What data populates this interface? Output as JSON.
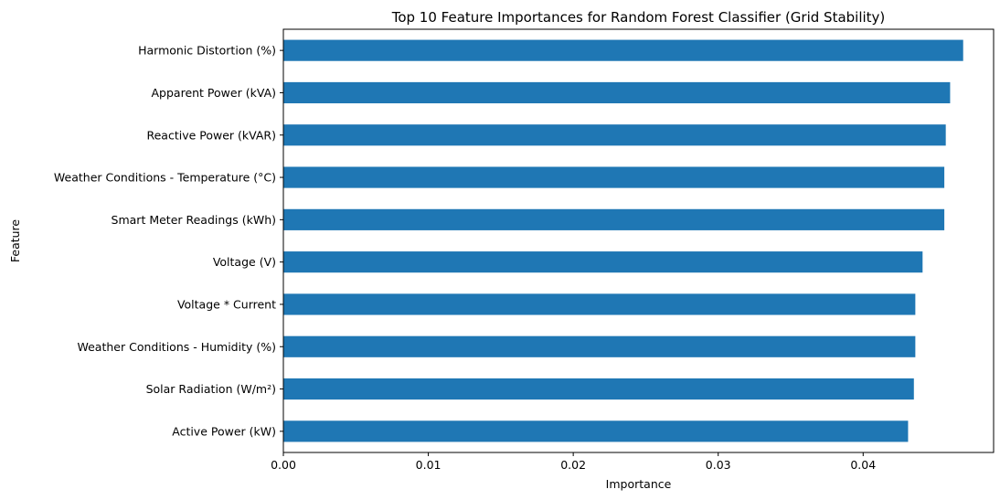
{
  "chart_data": {
    "type": "bar",
    "orientation": "horizontal",
    "title": "Top 10 Feature Importances for Random Forest Classifier (Grid Stability)",
    "xlabel": "Importance",
    "ylabel": "Feature",
    "categories": [
      "Harmonic Distortion (%)",
      "Apparent Power (kVA)",
      "Reactive Power (kVAR)",
      "Weather Conditions - Temperature (°C)",
      "Smart Meter Readings (kWh)",
      "Voltage (V)",
      "Voltage * Current",
      "Weather Conditions - Humidity (%)",
      "Solar Radiation (W/m²)",
      "Active Power (kW)"
    ],
    "values": [
      0.0469,
      0.046,
      0.0457,
      0.0456,
      0.0456,
      0.0441,
      0.0436,
      0.0436,
      0.0435,
      0.0431
    ],
    "xlim": [
      0,
      0.049
    ],
    "xticks": [
      0.0,
      0.01,
      0.02,
      0.03,
      0.04
    ],
    "xtick_labels": [
      "0.00",
      "0.01",
      "0.02",
      "0.03",
      "0.04"
    ],
    "bar_color": "#1f77b4",
    "grid": false,
    "legend": false
  }
}
